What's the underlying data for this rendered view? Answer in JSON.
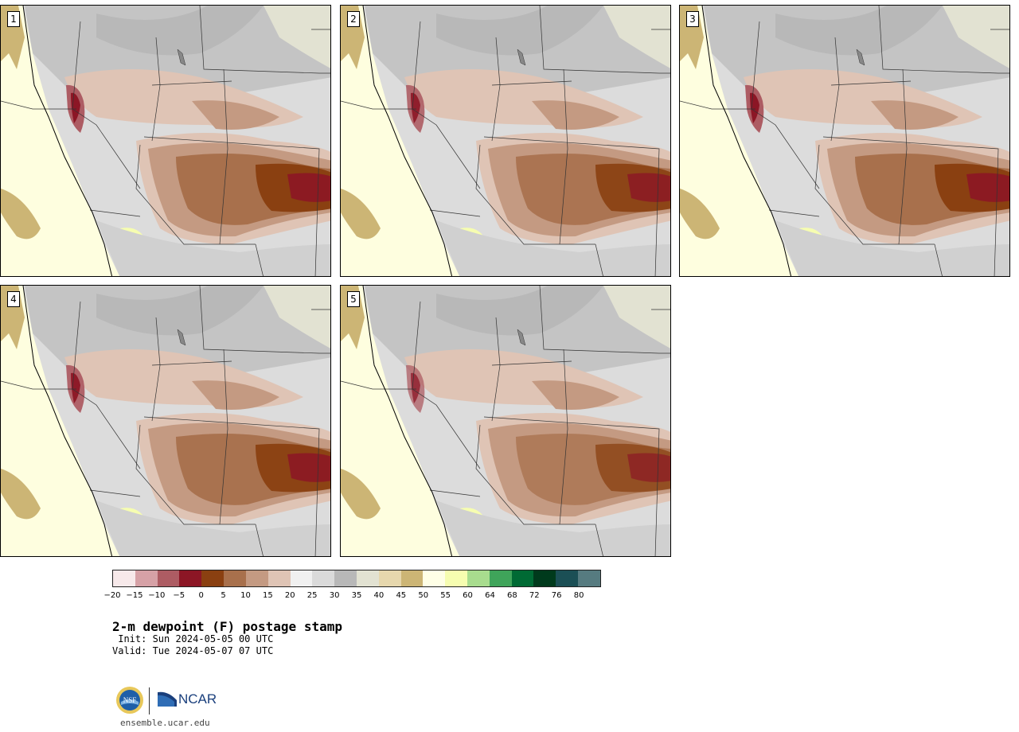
{
  "panels": [
    {
      "label": "1",
      "intensity": 1.0
    },
    {
      "label": "2",
      "intensity": 0.9
    },
    {
      "label": "3",
      "intensity": 1.0
    },
    {
      "label": "4",
      "intensity": 0.95
    },
    {
      "label": "5",
      "intensity": 0.75
    }
  ],
  "colorbar": {
    "colors": [
      "#f7e9ea",
      "#d6a1a6",
      "#ad5c63",
      "#8c1625",
      "#8a4011",
      "#a8704c",
      "#c49a82",
      "#dfc4b5",
      "#f0f0f0",
      "#dadada",
      "#b8b8b8",
      "#e2e2d2",
      "#e6d7ad",
      "#ccb575",
      "#ffffe6",
      "#f6fdb0",
      "#a8dc8e",
      "#3fa45a",
      "#006a34",
      "#003a1c",
      "#1b4f55",
      "#567b80"
    ],
    "ticks": [
      "−20",
      "−15",
      "−10",
      "−5",
      "0",
      "5",
      "10",
      "15",
      "20",
      "25",
      "30",
      "35",
      "40",
      "45",
      "50",
      "55",
      "60",
      "64",
      "68",
      "72",
      "76",
      "80"
    ]
  },
  "title": "2-m dewpoint (F) postage stamp",
  "init": " Init: Sun 2024-05-05 00 UTC",
  "valid": "Valid: Tue 2024-05-07 07 UTC",
  "logos": {
    "ncar": "NCAR",
    "nsf": "NSF"
  },
  "site": "ensemble.ucar.edu"
}
